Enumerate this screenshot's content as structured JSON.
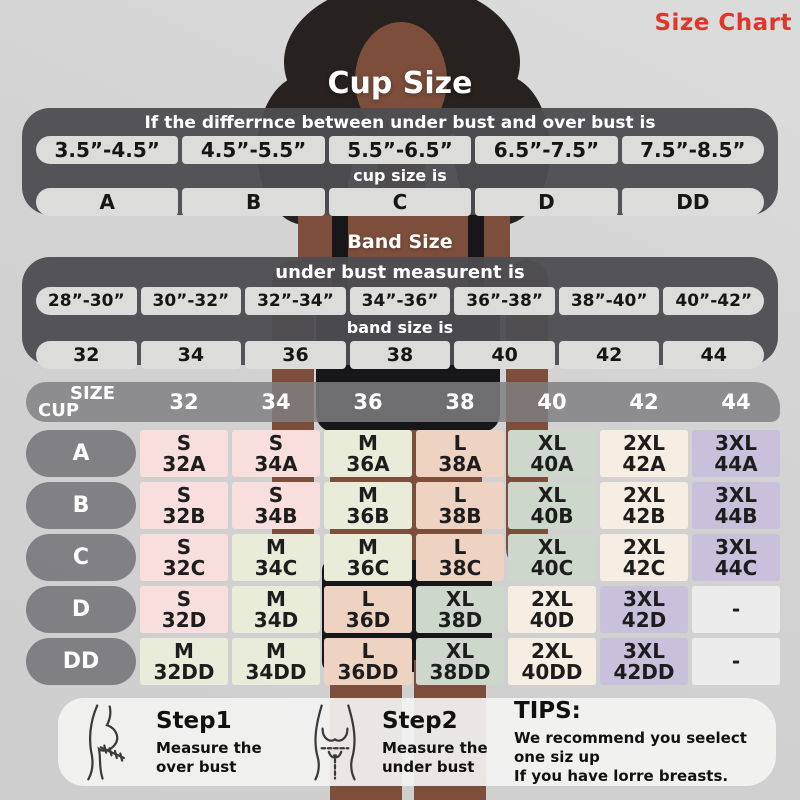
{
  "page": {
    "label": "Size Chart"
  },
  "cup_section": {
    "title": "Cup Size",
    "header": "If the differrnce between under bust and over bust is",
    "ranges": [
      "3.5”-4.5”",
      "4.5”-5.5”",
      "5.5”-6.5”",
      "6.5”-7.5”",
      "7.5”-8.5”"
    ],
    "subheader": "cup size is",
    "cups": [
      "A",
      "B",
      "C",
      "D",
      "DD"
    ]
  },
  "band_section": {
    "title": "Band Size",
    "header": "under bust measurent is",
    "ranges": [
      "28”-30”",
      "30”-32”",
      "32”-34”",
      "34”-36”",
      "36”-38”",
      "38”-40”",
      "40”-42”"
    ],
    "subheader": "band size is",
    "bands": [
      "32",
      "34",
      "36",
      "38",
      "40",
      "42",
      "44"
    ]
  },
  "matrix": {
    "corner_top": "SIZE",
    "corner_bottom": "CUP",
    "columns": [
      "32",
      "34",
      "36",
      "38",
      "40",
      "42",
      "44"
    ],
    "size_colors": {
      "S": "#f8dedd",
      "M": "#e8ecd8",
      "L": "#eed3c2",
      "XL": "#cdd7cb",
      "2XL": "#f6eee3",
      "3XL": "#c9c0dc",
      "-": "#ececec"
    },
    "rows": [
      {
        "cup": "A",
        "cells": [
          {
            "size": "S",
            "label": "32A"
          },
          {
            "size": "S",
            "label": "34A"
          },
          {
            "size": "M",
            "label": "36A"
          },
          {
            "size": "L",
            "label": "38A"
          },
          {
            "size": "XL",
            "label": "40A"
          },
          {
            "size": "2XL",
            "label": "42A"
          },
          {
            "size": "3XL",
            "label": "44A"
          }
        ]
      },
      {
        "cup": "B",
        "cells": [
          {
            "size": "S",
            "label": "32B"
          },
          {
            "size": "S",
            "label": "34B"
          },
          {
            "size": "M",
            "label": "36B"
          },
          {
            "size": "L",
            "label": "38B"
          },
          {
            "size": "XL",
            "label": "40B"
          },
          {
            "size": "2XL",
            "label": "42B"
          },
          {
            "size": "3XL",
            "label": "44B"
          }
        ]
      },
      {
        "cup": "C",
        "cells": [
          {
            "size": "S",
            "label": "32C"
          },
          {
            "size": "M",
            "label": "34C"
          },
          {
            "size": "M",
            "label": "36C"
          },
          {
            "size": "L",
            "label": "38C"
          },
          {
            "size": "XL",
            "label": "40C"
          },
          {
            "size": "2XL",
            "label": "42C"
          },
          {
            "size": "3XL",
            "label": "44C"
          }
        ]
      },
      {
        "cup": "D",
        "cells": [
          {
            "size": "S",
            "label": "32D"
          },
          {
            "size": "M",
            "label": "34D"
          },
          {
            "size": "L",
            "label": "36D"
          },
          {
            "size": "XL",
            "label": "38D"
          },
          {
            "size": "2XL",
            "label": "40D"
          },
          {
            "size": "3XL",
            "label": "42D"
          },
          {
            "size": "-",
            "label": ""
          }
        ]
      },
      {
        "cup": "DD",
        "cells": [
          {
            "size": "M",
            "label": "32DD"
          },
          {
            "size": "M",
            "label": "34DD"
          },
          {
            "size": "L",
            "label": "36DD"
          },
          {
            "size": "XL",
            "label": "38DD"
          },
          {
            "size": "2XL",
            "label": "40DD"
          },
          {
            "size": "3XL",
            "label": "42DD"
          },
          {
            "size": "-",
            "label": ""
          }
        ]
      }
    ]
  },
  "footer": {
    "step1_title": "Step1",
    "step1_desc_line1": "Measure the",
    "step1_desc_line2": "over bust",
    "step2_title": "Step2",
    "step2_desc_line1": "Measure the",
    "step2_desc_line2": "under bust",
    "tips_title": "TIPS:",
    "tips_line1": "We recommend you seelect one siz up",
    "tips_line2": "If you have lorre breasts."
  },
  "colors": {
    "accent_red": "#df362b",
    "panel_dark": "#4d4d51",
    "cell_light": "#dcdcda",
    "header_gray": "#808082"
  }
}
